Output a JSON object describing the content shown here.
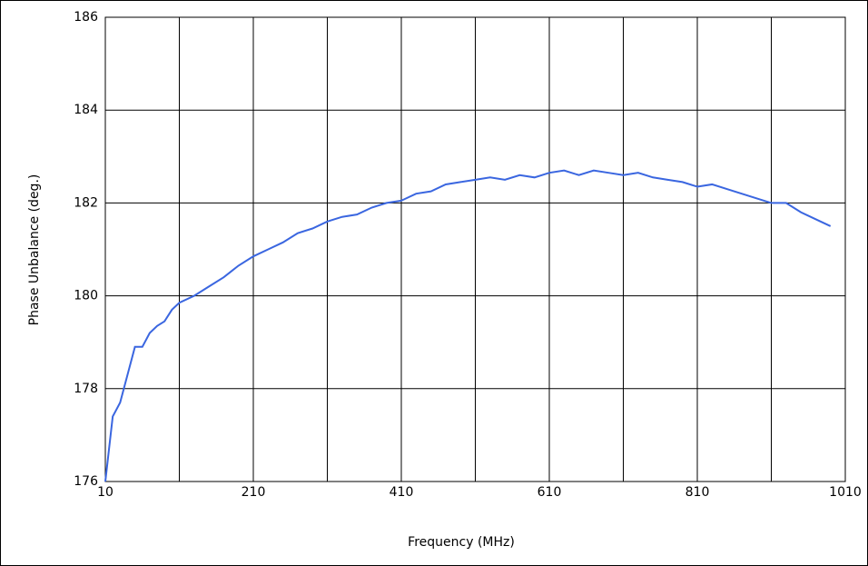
{
  "chart_data": {
    "type": "line",
    "x_label": "Frequency (MHz)",
    "y_label": "Phase Unbalance (deg.)",
    "x": [
      10,
      20,
      30,
      40,
      50,
      60,
      70,
      80,
      90,
      100,
      110,
      130,
      150,
      170,
      190,
      210,
      230,
      250,
      270,
      290,
      310,
      330,
      350,
      370,
      390,
      410,
      430,
      450,
      470,
      490,
      510,
      530,
      550,
      570,
      590,
      610,
      630,
      650,
      670,
      690,
      710,
      730,
      750,
      770,
      790,
      810,
      830,
      850,
      870,
      890,
      910,
      930,
      950,
      970,
      990
    ],
    "series": [
      {
        "name": "Phase Unbalance",
        "color": "#3a66e0",
        "values": [
          176.0,
          177.4,
          177.7,
          178.3,
          178.9,
          178.9,
          179.2,
          179.35,
          179.45,
          179.7,
          179.85,
          180.0,
          180.2,
          180.4,
          180.65,
          180.85,
          181.0,
          181.15,
          181.35,
          181.45,
          181.6,
          181.7,
          181.75,
          181.9,
          182.0,
          182.05,
          182.2,
          182.25,
          182.4,
          182.45,
          182.5,
          182.55,
          182.5,
          182.6,
          182.55,
          182.65,
          182.7,
          182.6,
          182.7,
          182.65,
          182.6,
          182.65,
          182.55,
          182.5,
          182.45,
          182.35,
          182.4,
          182.3,
          182.2,
          182.1,
          182.0,
          182.0,
          181.8,
          181.65,
          181.5
        ]
      }
    ],
    "xlim": [
      10,
      1010
    ],
    "xticks": [
      10,
      210,
      410,
      610,
      810,
      1010
    ],
    "x_minor_gridlines": [
      110,
      310,
      510,
      710,
      910
    ],
    "ylim": [
      176,
      186
    ],
    "yticks": [
      176,
      178,
      180,
      182,
      184,
      186
    ],
    "grid": true
  }
}
